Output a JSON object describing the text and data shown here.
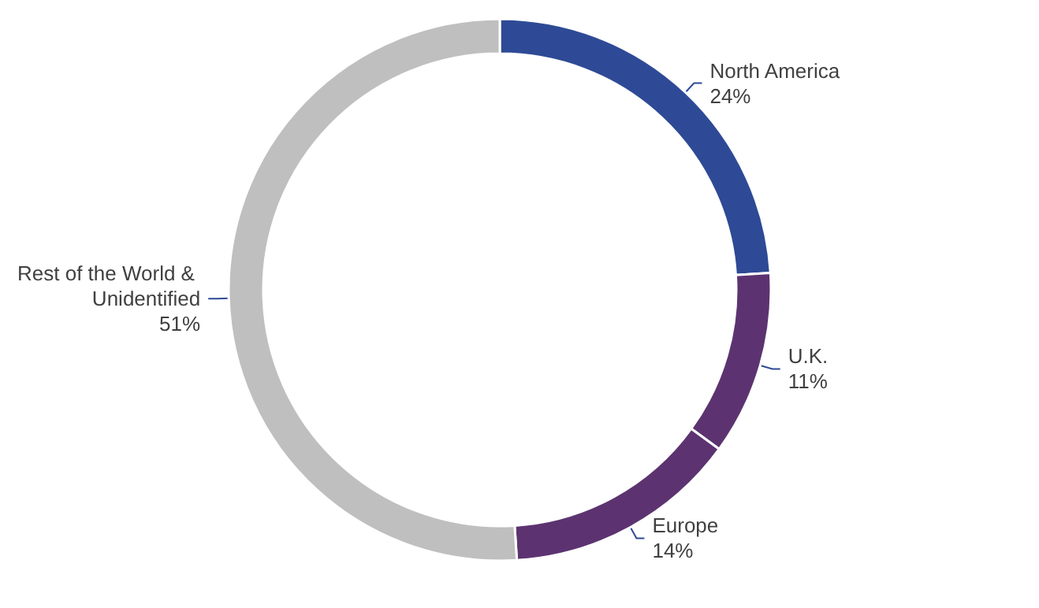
{
  "chart_data": {
    "type": "donut",
    "categories": [
      "North America",
      "U.K.",
      "Europe",
      "Rest of the World & Unidentified"
    ],
    "values": [
      24,
      11,
      14,
      51
    ],
    "value_labels": [
      "24%",
      "11%",
      "14%",
      "51%"
    ],
    "colors": [
      "#2e4a96",
      "#5c3370",
      "#5c3370",
      "#bfbfbf"
    ],
    "legend": false
  }
}
